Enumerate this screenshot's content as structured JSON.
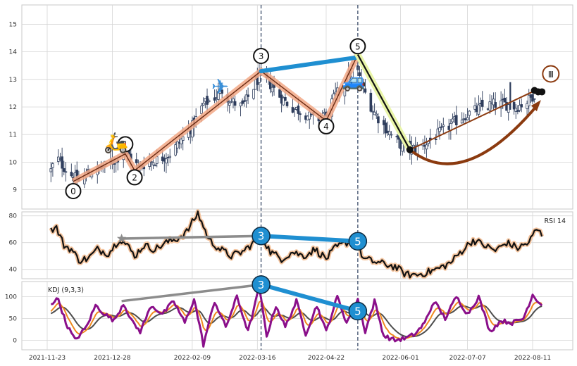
{
  "chart_data": [
    {
      "panel": "price",
      "type": "candlestick",
      "ylim": [
        8.3,
        15.7
      ],
      "y_ticks": [
        "9",
        "10",
        "11",
        "12",
        "13",
        "14",
        "15"
      ],
      "grid": true,
      "close_path": [
        [
          "2021-11-25",
          9.7
        ],
        [
          "2021-11-28",
          10.2
        ],
        [
          "2021-12-01",
          9.9
        ],
        [
          "2021-12-05",
          9.6
        ],
        [
          "2021-12-10",
          9.3
        ],
        [
          "2021-12-15",
          9.6
        ],
        [
          "2021-12-20",
          9.7
        ],
        [
          "2021-12-25",
          9.9
        ],
        [
          "2021-12-30",
          10.1
        ],
        [
          "2022-01-03",
          10.4
        ],
        [
          "2022-01-07",
          10.2
        ],
        [
          "2022-01-11",
          9.8
        ],
        [
          "2022-01-16",
          10.0
        ],
        [
          "2022-01-22",
          10.1
        ],
        [
          "2022-01-28",
          10.3
        ],
        [
          "2022-02-03",
          10.8
        ],
        [
          "2022-02-09",
          11.3
        ],
        [
          "2022-02-15",
          12.1
        ],
        [
          "2022-02-20",
          12.3
        ],
        [
          "2022-02-25",
          12.6
        ],
        [
          "2022-03-02",
          12.2
        ],
        [
          "2022-03-08",
          12.0
        ],
        [
          "2022-03-13",
          12.6
        ],
        [
          "2022-03-17",
          13.1
        ],
        [
          "2022-03-22",
          12.9
        ],
        [
          "2022-03-28",
          12.4
        ],
        [
          "2022-04-03",
          12.0
        ],
        [
          "2022-04-10",
          11.8
        ],
        [
          "2022-04-16",
          11.5
        ],
        [
          "2022-04-21",
          11.7
        ],
        [
          "2022-04-27",
          12.4
        ],
        [
          "2022-05-03",
          13.0
        ],
        [
          "2022-05-08",
          13.5
        ],
        [
          "2022-05-11",
          12.8
        ],
        [
          "2022-05-17",
          11.9
        ],
        [
          "2022-05-22",
          11.4
        ],
        [
          "2022-05-28",
          10.9
        ],
        [
          "2022-06-03",
          10.5
        ],
        [
          "2022-06-09",
          10.5
        ],
        [
          "2022-06-15",
          10.7
        ],
        [
          "2022-06-21",
          11.0
        ],
        [
          "2022-06-27",
          11.3
        ],
        [
          "2022-07-03",
          11.6
        ],
        [
          "2022-07-09",
          11.8
        ],
        [
          "2022-07-15",
          12.0
        ],
        [
          "2022-07-21",
          12.1
        ],
        [
          "2022-07-27",
          12.1
        ],
        [
          "2022-08-02",
          12.0
        ],
        [
          "2022-08-08",
          12.2
        ],
        [
          "2022-08-14",
          12.6
        ]
      ],
      "volatility": [
        0.38,
        0.4,
        0.45,
        0.42,
        0.36
      ],
      "wave_points": [
        {
          "label": "0",
          "date": "2021-12-07",
          "value": 9.3
        },
        {
          "label": "1",
          "date": "2022-01-04",
          "value": 10.3
        },
        {
          "label": "2",
          "date": "2022-01-09",
          "value": 9.7
        },
        {
          "label": "3",
          "date": "2022-03-18",
          "value": 13.3
        },
        {
          "label": "4",
          "date": "2022-04-22",
          "value": 11.5
        },
        {
          "label": "5",
          "date": "2022-05-09",
          "value": 13.9
        }
      ],
      "wave_label_offsets": [
        {
          "label": "0",
          "value_offset": -0.35
        },
        {
          "label": "1",
          "value_offset": 0.35
        },
        {
          "label": "2",
          "value_offset": -0.25
        },
        {
          "label": "3",
          "value_offset": 0.55
        },
        {
          "label": "4",
          "value_offset": -0.2
        },
        {
          "label": "5",
          "value_offset": 0.3
        }
      ],
      "divergence_segment": {
        "from": {
          "date": "2022-03-18",
          "value": 13.3
        },
        "to": {
          "date": "2022-05-09",
          "value": 13.8
        }
      },
      "correction_line": {
        "from": {
          "date": "2022-05-09",
          "value": 13.9
        },
        "to": {
          "date": "2022-06-06",
          "value": 10.45
        }
      },
      "recovery_line": {
        "from": {
          "date": "2022-06-06",
          "value": 10.45
        },
        "to": {
          "date": "2022-08-14",
          "value": 12.65
        }
      },
      "recovery_curve": {
        "from": {
          "date": "2022-06-06",
          "value": 10.45
        },
        "via": {
          "date": "2022-07-05",
          "value": 9.4
        },
        "to": {
          "date": "2022-08-14",
          "value": 12.1
        }
      },
      "end_dots": [
        {
          "date": "2022-06-06",
          "value": 10.45
        },
        {
          "date": "2022-08-12",
          "value": 12.6
        },
        {
          "date": "2022-08-14",
          "value": 12.55
        },
        {
          "date": "2022-08-16",
          "value": 12.55
        }
      ],
      "roman_label": {
        "label": "Ⅲ",
        "date": "2022-08-17",
        "value": 13.2
      },
      "emoji_markers": [
        {
          "icon": "scooter-icon",
          "glyph": "🛵",
          "date": "2021-12-30",
          "value": 10.7
        },
        {
          "icon": "airplane-icon",
          "glyph": "✈",
          "date": "2022-02-24",
          "value": 12.7
        },
        {
          "icon": "car-icon",
          "glyph": "🚙",
          "date": "2022-05-07",
          "value": 12.95
        }
      ],
      "vertical_lines": [
        "2022-03-18",
        "2022-05-09"
      ]
    },
    {
      "panel": "rsi",
      "type": "line",
      "label": "RSI 14",
      "ylim": [
        33,
        83
      ],
      "y_ticks": [
        "40",
        "60",
        "80"
      ],
      "series_anchors": [
        [
          "2021-11-25",
          70
        ],
        [
          "2021-11-28",
          71
        ],
        [
          "2021-12-02",
          58
        ],
        [
          "2021-12-06",
          55
        ],
        [
          "2021-12-10",
          47
        ],
        [
          "2021-12-15",
          48
        ],
        [
          "2021-12-20",
          55
        ],
        [
          "2021-12-26",
          52
        ],
        [
          "2022-01-01",
          63
        ],
        [
          "2022-01-05",
          58
        ],
        [
          "2022-01-09",
          50
        ],
        [
          "2022-01-14",
          58
        ],
        [
          "2022-01-20",
          55
        ],
        [
          "2022-01-26",
          60
        ],
        [
          "2022-02-01",
          63
        ],
        [
          "2022-02-06",
          68
        ],
        [
          "2022-02-12",
          82
        ],
        [
          "2022-02-18",
          62
        ],
        [
          "2022-02-24",
          55
        ],
        [
          "2022-03-02",
          50
        ],
        [
          "2022-03-08",
          53
        ],
        [
          "2022-03-14",
          60
        ],
        [
          "2022-03-18",
          66
        ],
        [
          "2022-03-23",
          53
        ],
        [
          "2022-03-29",
          48
        ],
        [
          "2022-04-04",
          53
        ],
        [
          "2022-04-10",
          50
        ],
        [
          "2022-04-16",
          55
        ],
        [
          "2022-04-22",
          48
        ],
        [
          "2022-04-27",
          56
        ],
        [
          "2022-05-03",
          60
        ],
        [
          "2022-05-08",
          62
        ],
        [
          "2022-05-12",
          48
        ],
        [
          "2022-05-17",
          46
        ],
        [
          "2022-05-23",
          44
        ],
        [
          "2022-05-29",
          42
        ],
        [
          "2022-06-04",
          36
        ],
        [
          "2022-06-10",
          36
        ],
        [
          "2022-06-16",
          38
        ],
        [
          "2022-06-22",
          41
        ],
        [
          "2022-06-28",
          45
        ],
        [
          "2022-07-04",
          54
        ],
        [
          "2022-07-10",
          62
        ],
        [
          "2022-07-16",
          58
        ],
        [
          "2022-07-22",
          54
        ],
        [
          "2022-07-28",
          60
        ],
        [
          "2022-08-03",
          56
        ],
        [
          "2022-08-09",
          60
        ],
        [
          "2022-08-13",
          70
        ],
        [
          "2022-08-16",
          66
        ]
      ],
      "noise": 2.8,
      "trend_segment": {
        "from": {
          "date": "2022-01-02",
          "value": 63
        },
        "to": {
          "date": "2022-03-18",
          "value": 65
        }
      },
      "star_marker": {
        "date": "2022-01-02",
        "value": 63
      },
      "divergence_segment": {
        "from": {
          "date": "2022-03-18",
          "value": 65
        },
        "to": {
          "date": "2022-05-09",
          "value": 61
        }
      },
      "badges": [
        {
          "label": "3",
          "date": "2022-03-18",
          "value": 65
        },
        {
          "label": "5",
          "date": "2022-05-09",
          "value": 61
        }
      ]
    },
    {
      "panel": "kdj",
      "type": "line",
      "label": "KDJ (9,3,3)",
      "ylim": [
        -22,
        135
      ],
      "y_ticks": [
        "0",
        "50",
        "100"
      ],
      "x_ticks": [
        "2021-11-23",
        "2021-12-28",
        "2022-02-09",
        "2022-03-16",
        "2022-04-22",
        "2022-06-01",
        "2022-07-07",
        "2022-08-11"
      ],
      "j_anchors": [
        [
          "2021-11-25",
          85
        ],
        [
          "2021-11-29",
          95
        ],
        [
          "2021-12-03",
          40
        ],
        [
          "2021-12-08",
          0
        ],
        [
          "2021-12-14",
          30
        ],
        [
          "2021-12-19",
          80
        ],
        [
          "2021-12-24",
          60
        ],
        [
          "2021-12-29",
          45
        ],
        [
          "2022-01-03",
          85
        ],
        [
          "2022-01-08",
          40
        ],
        [
          "2022-01-12",
          20
        ],
        [
          "2022-01-18",
          80
        ],
        [
          "2022-01-24",
          60
        ],
        [
          "2022-01-30",
          90
        ],
        [
          "2022-02-05",
          40
        ],
        [
          "2022-02-10",
          95
        ],
        [
          "2022-02-15",
          -10
        ],
        [
          "2022-02-21",
          90
        ],
        [
          "2022-02-27",
          30
        ],
        [
          "2022-03-05",
          100
        ],
        [
          "2022-03-11",
          20
        ],
        [
          "2022-03-17",
          120
        ],
        [
          "2022-03-21",
          10
        ],
        [
          "2022-03-26",
          80
        ],
        [
          "2022-03-31",
          30
        ],
        [
          "2022-04-06",
          90
        ],
        [
          "2022-04-11",
          15
        ],
        [
          "2022-04-17",
          80
        ],
        [
          "2022-04-22",
          20
        ],
        [
          "2022-04-28",
          100
        ],
        [
          "2022-05-03",
          40
        ],
        [
          "2022-05-09",
          95
        ],
        [
          "2022-05-13",
          20
        ],
        [
          "2022-05-18",
          90
        ],
        [
          "2022-05-23",
          10
        ],
        [
          "2022-05-29",
          0
        ],
        [
          "2022-06-04",
          5
        ],
        [
          "2022-06-09",
          15
        ],
        [
          "2022-06-14",
          40
        ],
        [
          "2022-06-19",
          90
        ],
        [
          "2022-06-25",
          50
        ],
        [
          "2022-07-01",
          100
        ],
        [
          "2022-07-07",
          60
        ],
        [
          "2022-07-13",
          100
        ],
        [
          "2022-07-19",
          20
        ],
        [
          "2022-07-25",
          45
        ],
        [
          "2022-07-31",
          40
        ],
        [
          "2022-08-06",
          50
        ],
        [
          "2022-08-11",
          105
        ],
        [
          "2022-08-16",
          80
        ]
      ],
      "noise": 10,
      "trend_segment": {
        "from": {
          "date": "2022-01-02",
          "value": 90
        },
        "to": {
          "date": "2022-03-18",
          "value": 128
        }
      },
      "divergence_segment": {
        "from": {
          "date": "2022-03-18",
          "value": 128
        },
        "to": {
          "date": "2022-05-09",
          "value": 67
        }
      },
      "badges": [
        {
          "label": "3",
          "date": "2022-03-18",
          "value": 128
        },
        {
          "label": "5",
          "date": "2022-05-09",
          "value": 67
        }
      ]
    }
  ],
  "colors": {
    "grid": "#d6d6d6",
    "frame": "#c8c8c8",
    "candle": "#2e3d5c",
    "wave_glow": "#f2a886",
    "wave_line": "#6b2a12",
    "divergence": "#1f8fd1",
    "trend_gray": "#8c8c8c",
    "correction_glow": "#e9f5a8",
    "recovery": "#8b3a0f",
    "vline": "#4a5a75",
    "rsi_line": "#111111",
    "rsi_glow": "#f4c49e",
    "kdj_j": "#8a0f8a",
    "kdj_k": "#f08a1e",
    "kdj_d": "#4d4d4d",
    "badge": "#1f8fd1"
  }
}
